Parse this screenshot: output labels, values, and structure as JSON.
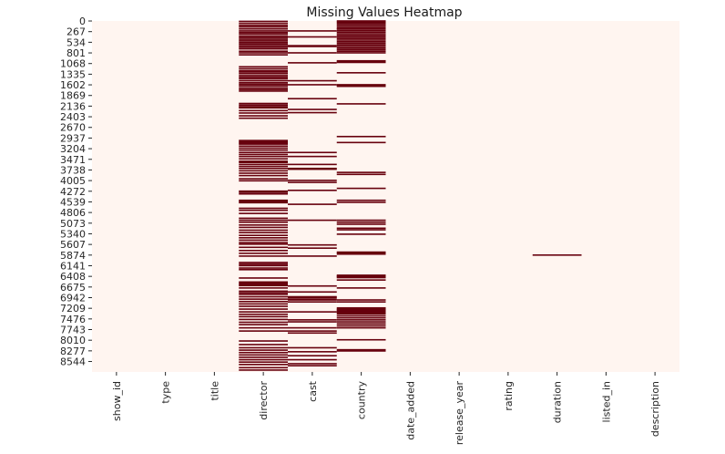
{
  "chart_data": {
    "type": "heatmap",
    "title": "Missing Values Heatmap",
    "xlabel": "",
    "ylabel": "",
    "grid": false,
    "legend": "none",
    "colors": {
      "present": "#fff5f0",
      "missing": "#67000d"
    },
    "row_count": 8807,
    "yticks": [
      "0",
      "267",
      "534",
      "801",
      "1068",
      "1335",
      "1602",
      "1869",
      "2136",
      "2403",
      "2670",
      "2937",
      "3204",
      "3471",
      "3738",
      "4005",
      "4272",
      "4539",
      "4806",
      "5073",
      "5340",
      "5607",
      "5874",
      "6141",
      "6408",
      "6675",
      "6942",
      "7209",
      "7476",
      "7743",
      "8010",
      "8277",
      "8544"
    ],
    "columns": [
      "show_id",
      "type",
      "title",
      "director",
      "cast",
      "country",
      "date_added",
      "release_year",
      "rating",
      "duration",
      "listed_in",
      "description"
    ],
    "missing_rows": {
      "show_id": [],
      "type": [],
      "title": [],
      "director": [
        10,
        60,
        110,
        150,
        200,
        250,
        290,
        330,
        380,
        420,
        460,
        500,
        540,
        580,
        620,
        660,
        700,
        760,
        800,
        850,
        1150,
        1200,
        1250,
        1280,
        1320,
        1370,
        1410,
        1450,
        1500,
        1550,
        1590,
        1630,
        1680,
        1720,
        1760,
        2070,
        2110,
        2150,
        2180,
        2250,
        2310,
        2380,
        2440,
        3000,
        3030,
        3060,
        3090,
        3140,
        3190,
        3240,
        3300,
        3350,
        3400,
        3460,
        3520,
        3550,
        3600,
        3650,
        3700,
        3760,
        3820,
        3880,
        3960,
        4010,
        4270,
        4300,
        4340,
        4500,
        4530,
        4560,
        4700,
        4750,
        4830,
        4950,
        5000,
        5050,
        5120,
        5180,
        5250,
        5310,
        5380,
        5440,
        5500,
        5560,
        5600,
        5680,
        5760,
        5830,
        5900,
        6060,
        6100,
        6140,
        6200,
        6240,
        6450,
        6550,
        6580,
        6610,
        6640,
        6700,
        6780,
        6820,
        6860,
        6920,
        6980,
        7040,
        7100,
        7160,
        7230,
        7300,
        7360,
        7420,
        7490,
        7560,
        7620,
        7700,
        7780,
        8030,
        8120,
        8200,
        8260,
        8320,
        8380,
        8440,
        8500,
        8560,
        8620,
        8700,
        8760
      ],
      "cast": [
        250,
        400,
        620,
        640,
        800,
        1050,
        1500,
        1600,
        1950,
        2220,
        2300,
        3300,
        3400,
        3600,
        3700,
        3720,
        4000,
        4050,
        4250,
        4600,
        5000,
        5620,
        5700,
        5900,
        6650,
        6800,
        6920,
        6940,
        6980,
        7000,
        7050,
        7300,
        7500,
        7550,
        7700,
        7780,
        7830,
        8200,
        8300,
        8400,
        8500,
        8600,
        8650
      ],
      "country": [
        0,
        30,
        60,
        100,
        140,
        180,
        200,
        240,
        280,
        320,
        360,
        400,
        440,
        480,
        520,
        560,
        600,
        640,
        680,
        720,
        760,
        800,
        1000,
        1020,
        1040,
        1300,
        1600,
        1620,
        1640,
        2080,
        2900,
        3050,
        3800,
        3850,
        4200,
        4500,
        4550,
        5000,
        5050,
        5100,
        5200,
        5240,
        5350,
        5800,
        5820,
        5850,
        6380,
        6400,
        6420,
        6440,
        6500,
        6700,
        7000,
        7050,
        7200,
        7230,
        7250,
        7270,
        7300,
        7320,
        7350,
        7400,
        7450,
        7500,
        7550,
        7600,
        7650,
        7700,
        8000,
        8250,
        8280
      ],
      "date_added": [],
      "release_year": [],
      "rating": [],
      "duration": [
        5874
      ],
      "listed_in": [],
      "description": []
    }
  }
}
